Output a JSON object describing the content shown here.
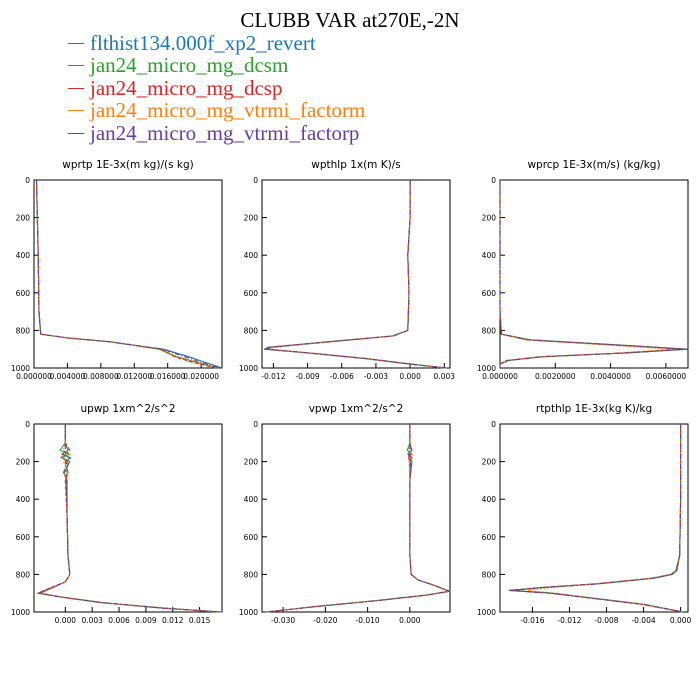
{
  "title": "CLUBB VAR at270E,-2N",
  "legend": [
    {
      "label": "flthist134.000f_xp2_revert",
      "color": "#1f77b4"
    },
    {
      "label": "jan24_micro_mg_dcsm",
      "color": "#2ca02c"
    },
    {
      "label": "jan24_micro_mg_dcsp",
      "color": "#d62728"
    },
    {
      "label": "jan24_micro_mg_vtrmi_factorm",
      "color": "#ff7f0e"
    },
    {
      "label": "jan24_micro_mg_vtrmi_factorp",
      "color": "#6a3d9a"
    }
  ],
  "chart_data": [
    {
      "type": "line",
      "title": "wprtp   1E-3x(m kg)/(s kg)",
      "xlim": [
        0.0,
        0.0225
      ],
      "ylim": [
        1000,
        0
      ],
      "xticks": [
        "0.000000",
        "0.004000",
        "0.008000",
        "0.012000",
        "0.016000",
        "0.020000"
      ],
      "xtick_values": [
        0.0,
        0.004,
        0.008,
        0.012,
        0.016,
        0.02
      ],
      "yticks": [
        "0",
        "200",
        "400",
        "600",
        "800",
        "1000"
      ],
      "y": [
        0,
        400,
        700,
        820,
        840,
        860,
        900,
        940,
        970,
        1000
      ],
      "series": [
        {
          "values": [
            0.0003,
            0.0005,
            0.0006,
            0.0008,
            0.004,
            0.009,
            0.0155,
            0.0185,
            0.0205,
            0.0225
          ]
        },
        {
          "values": [
            0.0003,
            0.0005,
            0.0006,
            0.0008,
            0.004,
            0.009,
            0.015,
            0.017,
            0.0195,
            0.022
          ]
        },
        {
          "values": [
            0.0003,
            0.0005,
            0.0006,
            0.0008,
            0.004,
            0.009,
            0.0152,
            0.0168,
            0.019,
            0.0218
          ]
        },
        {
          "values": [
            0.0003,
            0.0005,
            0.0006,
            0.0008,
            0.004,
            0.009,
            0.0153,
            0.0172,
            0.0197,
            0.0221
          ]
        },
        {
          "values": [
            0.0003,
            0.0005,
            0.0006,
            0.0008,
            0.004,
            0.009,
            0.0154,
            0.018,
            0.02,
            0.0223
          ]
        }
      ]
    },
    {
      "type": "line",
      "title": "wpthlp   1x(m K)/s",
      "xlim": [
        -0.013,
        0.0035
      ],
      "ylim": [
        1000,
        0
      ],
      "xticks": [
        "-0.012",
        "-0.009",
        "-0.006",
        "-0.003",
        "0.000",
        "0.003"
      ],
      "xtick_values": [
        -0.012,
        -0.009,
        -0.006,
        -0.003,
        0.0,
        0.003
      ],
      "yticks": [
        "0",
        "200",
        "400",
        "600",
        "800",
        "1000"
      ],
      "y": [
        0,
        200,
        400,
        600,
        800,
        830,
        860,
        890,
        900,
        920,
        950,
        980,
        1000
      ],
      "series": [
        {
          "values": [
            0.0,
            0.0,
            -0.0002,
            -0.0001,
            -0.0002,
            -0.0015,
            -0.007,
            -0.0125,
            -0.0128,
            -0.009,
            -0.004,
            0.0,
            0.0032
          ]
        },
        {
          "values": [
            0.0,
            0.0,
            -0.0002,
            -0.0001,
            -0.0002,
            -0.0016,
            -0.0072,
            -0.0122,
            -0.0125,
            -0.0088,
            -0.0038,
            0.0002,
            0.0031
          ]
        },
        {
          "values": [
            0.0,
            0.0,
            -0.0002,
            -0.0001,
            -0.0002,
            -0.0015,
            -0.0071,
            -0.0124,
            -0.0127,
            -0.0089,
            -0.0039,
            0.0001,
            0.0032
          ]
        },
        {
          "values": [
            0.0,
            0.0,
            -0.0002,
            -0.0001,
            -0.0002,
            -0.0014,
            -0.0068,
            -0.012,
            -0.0123,
            -0.0086,
            -0.0037,
            0.0001,
            0.003
          ]
        },
        {
          "values": [
            0.0,
            0.0,
            -0.0002,
            -0.0001,
            -0.0002,
            -0.0015,
            -0.007,
            -0.0123,
            -0.0126,
            -0.0088,
            -0.0039,
            0.0001,
            0.0032
          ]
        }
      ]
    },
    {
      "type": "line",
      "title": "wprcp   1E-3x(m/s) (kg/kg)",
      "xlim": [
        0.0,
        0.0068
      ],
      "ylim": [
        1000,
        0
      ],
      "xticks": [
        "0.000000",
        "0.0020000",
        "0.0040000",
        "0.0060000"
      ],
      "xtick_values": [
        0.0,
        0.002,
        0.004,
        0.006
      ],
      "yticks": [
        "0",
        "200",
        "400",
        "600",
        "800",
        "1000"
      ],
      "y": [
        0,
        400,
        700,
        820,
        850,
        880,
        900,
        920,
        940,
        960,
        980,
        1000
      ],
      "series": [
        {
          "values": [
            0.0,
            0.0,
            0.0,
            5e-05,
            0.001,
            0.0045,
            0.0068,
            0.0045,
            0.0015,
            0.0003,
            0.0,
            0.0
          ]
        },
        {
          "values": [
            0.0,
            0.0,
            0.0,
            5e-05,
            0.0011,
            0.0046,
            0.0067,
            0.0046,
            0.0016,
            0.0003,
            0.0,
            0.0
          ]
        },
        {
          "values": [
            0.0,
            0.0,
            0.0,
            5e-05,
            0.001,
            0.0044,
            0.0066,
            0.0044,
            0.0015,
            0.0002,
            0.0,
            0.0
          ]
        },
        {
          "values": [
            0.0,
            0.0,
            0.0,
            5e-05,
            0.0009,
            0.004,
            0.0062,
            0.0042,
            0.0014,
            0.0002,
            0.0,
            0.0
          ]
        },
        {
          "values": [
            0.0,
            0.0,
            0.0,
            5e-05,
            0.001,
            0.0045,
            0.0068,
            0.0045,
            0.0015,
            0.0003,
            0.0,
            0.0
          ]
        }
      ]
    },
    {
      "type": "line",
      "title": "upwp   1xm^2/s^2",
      "xlim": [
        -0.0035,
        0.0175
      ],
      "ylim": [
        1000,
        0
      ],
      "xticks": [
        "0.000",
        "0.003",
        "0.006",
        "0.009",
        "0.012",
        "0.015"
      ],
      "xtick_values": [
        0.0,
        0.003,
        0.006,
        0.009,
        0.012,
        0.015
      ],
      "yticks": [
        "0",
        "200",
        "400",
        "600",
        "800",
        "1000"
      ],
      "y": [
        0,
        100,
        140,
        160,
        180,
        200,
        260,
        300,
        500,
        700,
        800,
        840,
        870,
        900,
        920,
        950,
        980,
        1000
      ],
      "series": [
        {
          "values": [
            0.0,
            0.0,
            0.0003,
            -0.0004,
            0.0006,
            0.0,
            0.0002,
            0.0001,
            0.0002,
            0.0003,
            0.0005,
            0.0,
            -0.0015,
            -0.003,
            -0.0005,
            0.004,
            0.011,
            0.0175
          ]
        },
        {
          "values": [
            0.0,
            0.0,
            -0.0006,
            0.0004,
            -0.0003,
            0.0005,
            -0.0001,
            0.0002,
            0.0002,
            0.0003,
            0.0005,
            0.0,
            -0.0014,
            -0.0028,
            -0.0004,
            0.0042,
            0.0112,
            0.0173
          ]
        },
        {
          "values": [
            0.0,
            0.0,
            0.0005,
            0.0,
            -0.0005,
            0.0003,
            0.0002,
            0.0,
            0.0002,
            0.0003,
            0.0005,
            0.0,
            -0.0016,
            -0.0031,
            -0.0006,
            0.0039,
            0.0108,
            0.0172
          ]
        },
        {
          "values": [
            0.0,
            0.0,
            -0.0002,
            0.0006,
            0.0002,
            -0.0002,
            0.0004,
            0.0001,
            0.0002,
            0.0003,
            0.0005,
            0.0,
            -0.0013,
            -0.0027,
            -0.0004,
            0.0041,
            0.011,
            0.017
          ]
        },
        {
          "values": [
            0.0,
            0.0,
            0.0,
            -0.0003,
            0.0004,
            0.0002,
            -0.0002,
            0.0001,
            0.0002,
            0.0003,
            0.0005,
            0.0,
            -0.0015,
            -0.003,
            -0.0005,
            0.004,
            0.0111,
            0.0174
          ]
        }
      ]
    },
    {
      "type": "line",
      "title": "vpwp   1xm^2/s^2",
      "xlim": [
        -0.035,
        0.0095
      ],
      "ylim": [
        1000,
        0
      ],
      "xticks": [
        "-0.030",
        "-0.020",
        "-0.010",
        "0.000"
      ],
      "xtick_values": [
        -0.03,
        -0.02,
        -0.01,
        0.0
      ],
      "yticks": [
        "0",
        "200",
        "400",
        "600",
        "800",
        "1000"
      ],
      "y": [
        0,
        100,
        140,
        160,
        180,
        200,
        300,
        500,
        700,
        800,
        830,
        860,
        890,
        910,
        940,
        970,
        1000
      ],
      "series": [
        {
          "values": [
            0.0,
            0.0,
            0.0004,
            -0.0005,
            0.0005,
            0.0,
            0.0,
            0.0,
            0.0,
            0.0003,
            0.002,
            0.006,
            0.0095,
            0.004,
            -0.008,
            -0.022,
            -0.034
          ]
        },
        {
          "values": [
            0.0,
            0.0,
            -0.0006,
            0.0004,
            -0.0003,
            0.0005,
            0.0,
            0.0,
            0.0,
            0.0003,
            0.002,
            0.006,
            0.0092,
            0.0038,
            -0.0082,
            -0.0222,
            -0.0338
          ]
        },
        {
          "values": [
            0.0,
            0.0,
            0.0005,
            0.0,
            -0.0005,
            0.0003,
            0.0,
            0.0,
            0.0,
            0.0003,
            0.002,
            0.006,
            0.0094,
            0.0041,
            -0.0079,
            -0.0219,
            -0.0341
          ]
        },
        {
          "values": [
            0.0,
            0.0,
            -0.0002,
            0.0006,
            0.0002,
            -0.0002,
            0.0,
            0.0,
            0.0,
            0.0003,
            0.002,
            0.006,
            0.009,
            0.0037,
            -0.0081,
            -0.0221,
            -0.0339
          ]
        },
        {
          "values": [
            0.0,
            0.0,
            0.0,
            -0.0003,
            0.0004,
            0.0002,
            0.0,
            0.0,
            0.0,
            0.0003,
            0.002,
            0.006,
            0.0093,
            0.0039,
            -0.008,
            -0.022,
            -0.034
          ]
        }
      ]
    },
    {
      "type": "line",
      "title": "rtpthlp   1E-3x(kg K)/kg",
      "xlim": [
        -0.0195,
        0.0008
      ],
      "ylim": [
        1000,
        0
      ],
      "xticks": [
        "-0.016",
        "-0.012",
        "-0.008",
        "-0.004",
        "0.000"
      ],
      "xtick_values": [
        -0.016,
        -0.012,
        -0.008,
        -0.004,
        0.0
      ],
      "yticks": [
        "0",
        "200",
        "400",
        "600",
        "800",
        "1000"
      ],
      "y": [
        0,
        400,
        700,
        780,
        800,
        820,
        850,
        870,
        885,
        900,
        930,
        960,
        1000
      ],
      "series": [
        {
          "values": [
            0.0,
            0.0,
            -0.0001,
            -0.0005,
            -0.001,
            -0.003,
            -0.009,
            -0.015,
            -0.0185,
            -0.014,
            -0.009,
            -0.004,
            0.0003
          ]
        },
        {
          "values": [
            0.0,
            0.0,
            -0.0001,
            -0.0004,
            -0.0009,
            -0.0028,
            -0.0088,
            -0.0148,
            -0.0183,
            -0.0138,
            -0.0088,
            -0.0038,
            0.0003
          ]
        },
        {
          "values": [
            0.0,
            0.0,
            -0.0001,
            -0.0005,
            -0.001,
            -0.0031,
            -0.0091,
            -0.0152,
            -0.0186,
            -0.0141,
            -0.0091,
            -0.0041,
            0.0002
          ]
        },
        {
          "values": [
            0.0,
            0.0,
            -0.0001,
            -0.0005,
            -0.0011,
            -0.0033,
            -0.0093,
            -0.014,
            -0.0165,
            -0.0135,
            -0.0089,
            -0.004,
            0.0002
          ]
        },
        {
          "values": [
            0.0,
            0.0,
            -0.0001,
            -0.0005,
            -0.001,
            -0.003,
            -0.009,
            -0.015,
            -0.0184,
            -0.0139,
            -0.009,
            -0.004,
            0.0003
          ]
        }
      ]
    }
  ]
}
